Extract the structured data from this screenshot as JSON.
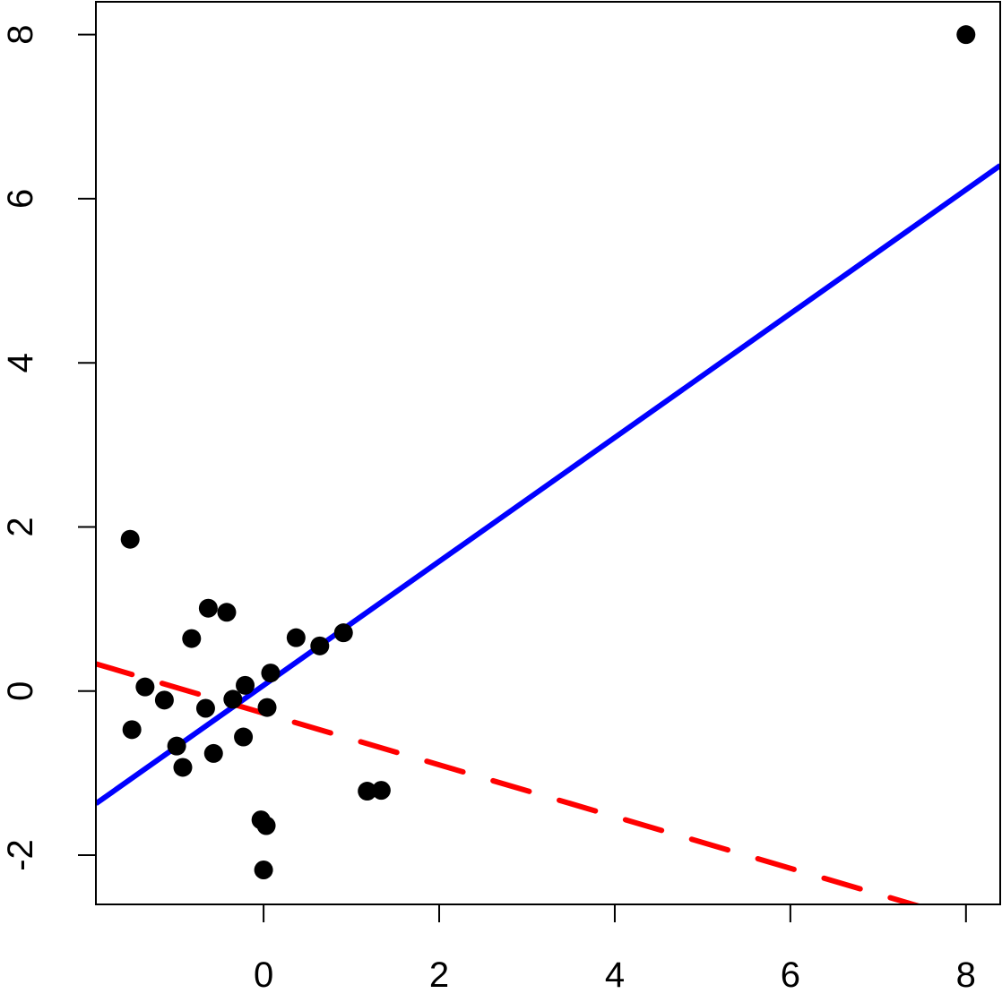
{
  "chart_data": {
    "type": "scatter",
    "title": "",
    "xlabel": "",
    "ylabel": "",
    "xlim": [
      -1.91,
      8.39
    ],
    "ylim": [
      -2.6,
      8.4
    ],
    "grid": false,
    "xticks": [
      "0",
      "2",
      "4",
      "6",
      "8"
    ],
    "xtick_values": [
      0,
      2,
      4,
      6,
      8
    ],
    "yticks": [
      "-2",
      "0",
      "2",
      "4",
      "6",
      "8"
    ],
    "ytick_values": [
      -2,
      0,
      2,
      4,
      6,
      8
    ],
    "points": [
      [
        8.0,
        8.0
      ],
      [
        -1.52,
        1.85
      ],
      [
        -1.5,
        -0.47
      ],
      [
        -1.35,
        0.05
      ],
      [
        -1.13,
        -0.11
      ],
      [
        -0.99,
        -0.67
      ],
      [
        -0.92,
        -0.93
      ],
      [
        -0.82,
        0.64
      ],
      [
        -0.66,
        -0.21
      ],
      [
        -0.63,
        1.01
      ],
      [
        -0.57,
        -0.76
      ],
      [
        -0.42,
        0.96
      ],
      [
        -0.35,
        -0.1
      ],
      [
        -0.23,
        -0.56
      ],
      [
        -0.21,
        0.07
      ],
      [
        -0.03,
        -1.57
      ],
      [
        0.0,
        -2.18
      ],
      [
        0.03,
        -1.64
      ],
      [
        0.04,
        -0.2
      ],
      [
        0.08,
        0.22
      ],
      [
        0.37,
        0.65
      ],
      [
        0.64,
        0.55
      ],
      [
        0.91,
        0.71
      ],
      [
        1.18,
        -1.22
      ],
      [
        1.34,
        -1.21
      ]
    ],
    "lines": [
      {
        "name": "fit-solid",
        "slope": 0.755,
        "intercept": 0.07,
        "color": "#0000ff",
        "style": "solid"
      },
      {
        "name": "fit-dashed",
        "slope": -0.315,
        "intercept": -0.27,
        "color": "#ff0000",
        "style": "dashed"
      }
    ],
    "point_color": "#000000"
  }
}
